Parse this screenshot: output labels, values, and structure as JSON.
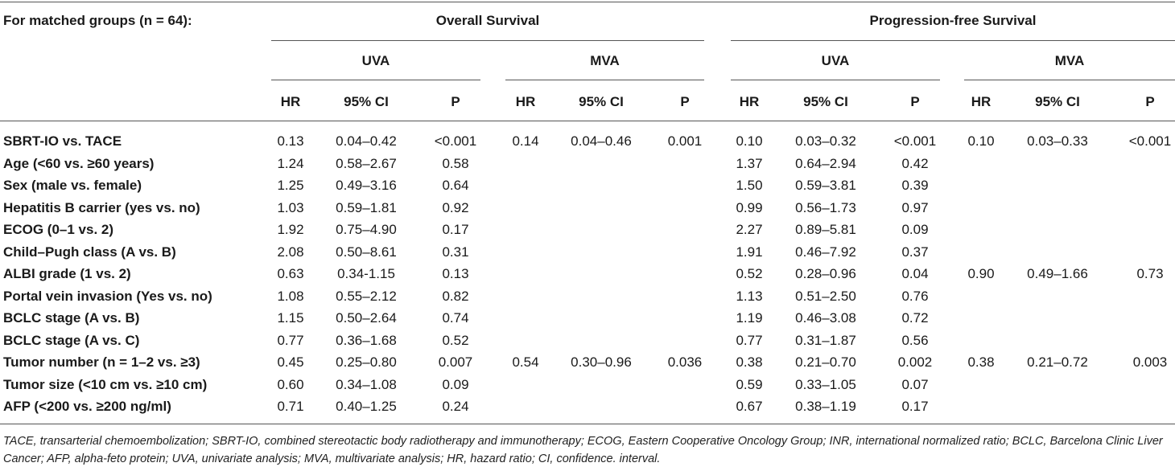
{
  "caption": "For matched groups (n = 64):",
  "groups": [
    "Overall Survival",
    "Progression-free Survival"
  ],
  "analyses": [
    "UVA",
    "MVA",
    "UVA",
    "MVA"
  ],
  "columns": [
    "HR",
    "95% CI",
    "P",
    "HR",
    "95% CI",
    "P",
    "HR",
    "95% CI",
    "P",
    "HR",
    "95% CI",
    "P"
  ],
  "rows": [
    {
      "label": "SBRT-IO vs. TACE",
      "cells": [
        "0.13",
        "0.04–0.42",
        "<0.001",
        "0.14",
        "0.04–0.46",
        "0.001",
        "0.10",
        "0.03–0.32",
        "<0.001",
        "0.10",
        "0.03–0.33",
        "<0.001"
      ]
    },
    {
      "label": "Age (<60 vs. ≥60 years)",
      "cells": [
        "1.24",
        "0.58–2.67",
        "0.58",
        "",
        "",
        "",
        "1.37",
        "0.64–2.94",
        "0.42",
        "",
        "",
        ""
      ]
    },
    {
      "label": "Sex (male vs. female)",
      "cells": [
        "1.25",
        "0.49–3.16",
        "0.64",
        "",
        "",
        "",
        "1.50",
        "0.59–3.81",
        "0.39",
        "",
        "",
        ""
      ]
    },
    {
      "label": "Hepatitis B carrier (yes vs. no)",
      "cells": [
        "1.03",
        "0.59–1.81",
        "0.92",
        "",
        "",
        "",
        "0.99",
        "0.56–1.73",
        "0.97",
        "",
        "",
        ""
      ]
    },
    {
      "label": "ECOG (0–1 vs. 2)",
      "cells": [
        "1.92",
        "0.75–4.90",
        "0.17",
        "",
        "",
        "",
        "2.27",
        "0.89–5.81",
        "0.09",
        "",
        "",
        ""
      ]
    },
    {
      "label": "Child–Pugh class (A vs. B)",
      "cells": [
        "2.08",
        "0.50–8.61",
        "0.31",
        "",
        "",
        "",
        "1.91",
        "0.46–7.92",
        "0.37",
        "",
        "",
        ""
      ]
    },
    {
      "label": "ALBI grade (1 vs. 2)",
      "cells": [
        "0.63",
        "0.34-1.15",
        "0.13",
        "",
        "",
        "",
        "0.52",
        "0.28–0.96",
        "0.04",
        "0.90",
        "0.49–1.66",
        "0.73"
      ]
    },
    {
      "label": "Portal vein invasion (Yes vs. no)",
      "cells": [
        "1.08",
        "0.55–2.12",
        "0.82",
        "",
        "",
        "",
        "1.13",
        "0.51–2.50",
        "0.76",
        "",
        "",
        ""
      ]
    },
    {
      "label": "BCLC stage (A vs. B)",
      "cells": [
        "1.15",
        "0.50–2.64",
        "0.74",
        "",
        "",
        "",
        "1.19",
        "0.46–3.08",
        "0.72",
        "",
        "",
        ""
      ]
    },
    {
      "label": "BCLC stage (A vs. C)",
      "cells": [
        "0.77",
        "0.36–1.68",
        "0.52",
        "",
        "",
        "",
        "0.77",
        "0.31–1.87",
        "0.56",
        "",
        "",
        ""
      ]
    },
    {
      "label": "Tumor number (n = 1–2 vs. ≥3)",
      "cells": [
        "0.45",
        "0.25–0.80",
        "0.007",
        "0.54",
        "0.30–0.96",
        "0.036",
        "0.38",
        "0.21–0.70",
        "0.002",
        "0.38",
        "0.21–0.72",
        "0.003"
      ]
    },
    {
      "label": "Tumor size (<10 cm vs. ≥10 cm)",
      "cells": [
        "0.60",
        "0.34–1.08",
        "0.09",
        "",
        "",
        "",
        "0.59",
        "0.33–1.05",
        "0.07",
        "",
        "",
        ""
      ]
    },
    {
      "label": "AFP (<200 vs. ≥200 ng/ml)",
      "cells": [
        "0.71",
        "0.40–1.25",
        "0.24",
        "",
        "",
        "",
        "0.67",
        "0.38–1.19",
        "0.17",
        "",
        "",
        ""
      ]
    }
  ],
  "footnote": "TACE, transarterial chemoembolization; SBRT-IO, combined stereotactic body radiotherapy and immunotherapy; ECOG, Eastern Cooperative Oncology Group; INR, international normalized ratio; BCLC, Barcelona Clinic Liver Cancer; AFP, alpha-feto protein; UVA, univariate analysis; MVA, multivariate analysis; HR, hazard ratio; CI, confidence. interval."
}
